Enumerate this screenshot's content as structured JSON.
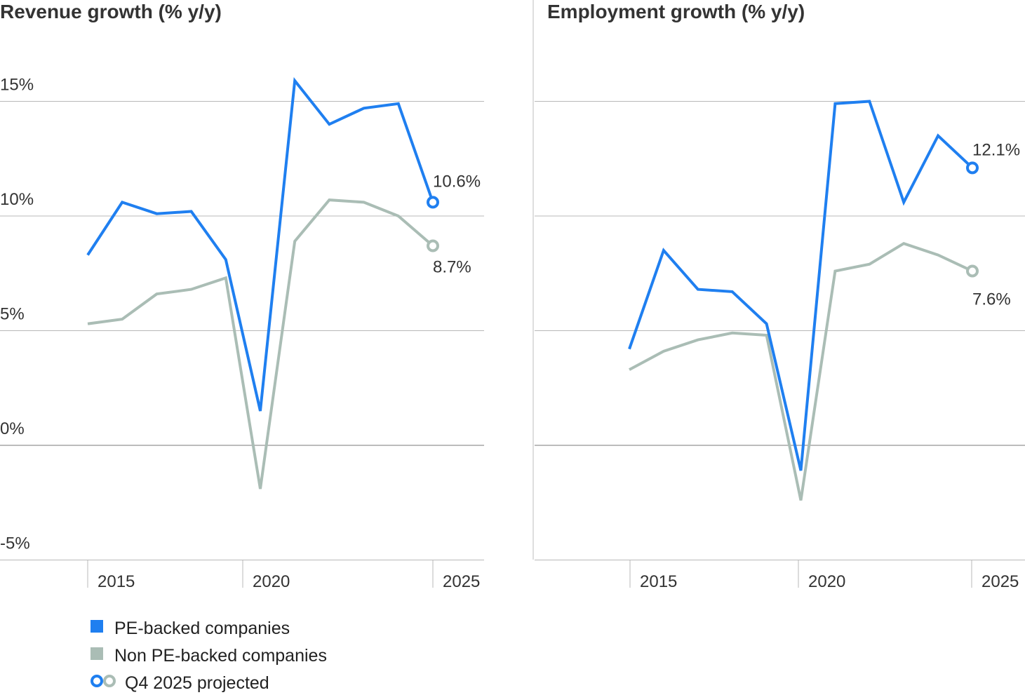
{
  "colors": {
    "pe": "#1f7ff0",
    "non_pe": "#aabdb5",
    "grid": "#b8b8b8",
    "zero": "#7a7a7a",
    "divider": "#bdbdbd"
  },
  "chart_data": [
    {
      "type": "line",
      "title": "Revenue growth (% y/y)",
      "x": [
        2014,
        2015,
        2016,
        2017,
        2018,
        2019,
        2020,
        2021,
        2022,
        2023,
        2024
      ],
      "ylim": [
        -5,
        15
      ],
      "yticks": [
        15,
        10,
        5,
        0,
        -5
      ],
      "ytick_labels": [
        "15%",
        "10%",
        "5%",
        "0%",
        "-5%"
      ],
      "xticks": [
        2015,
        2020,
        2025
      ],
      "xtick_labels": [
        "2015",
        "2020",
        "2025"
      ],
      "grid": true,
      "series": [
        {
          "name": "PE-backed companies",
          "color": "#1f7ff0",
          "values": [
            8.3,
            10.6,
            10.1,
            10.2,
            8.1,
            1.5,
            15.9,
            14.0,
            14.7,
            14.9,
            10.6
          ],
          "end_label": "10.6%"
        },
        {
          "name": "Non PE-backed companies",
          "color": "#aabdb5",
          "values": [
            5.3,
            5.5,
            6.6,
            6.8,
            7.3,
            -1.9,
            8.9,
            10.7,
            10.6,
            10.0,
            8.7
          ],
          "end_label": "8.7%"
        }
      ]
    },
    {
      "type": "line",
      "title": "Employment growth (% y/y)",
      "x": [
        2014,
        2015,
        2016,
        2017,
        2018,
        2019,
        2020,
        2021,
        2022,
        2023,
        2024
      ],
      "ylim": [
        -5,
        15
      ],
      "xticks": [
        2015,
        2020,
        2025
      ],
      "xtick_labels": [
        "2015",
        "2020",
        "2025"
      ],
      "grid": true,
      "series": [
        {
          "name": "PE-backed companies",
          "color": "#1f7ff0",
          "values": [
            4.2,
            8.5,
            6.8,
            6.7,
            5.3,
            -1.1,
            14.9,
            15.0,
            10.6,
            13.5,
            12.1
          ],
          "end_label": "12.1%"
        },
        {
          "name": "Non PE-backed companies",
          "color": "#aabdb5",
          "values": [
            3.3,
            4.1,
            4.6,
            4.9,
            4.8,
            -2.4,
            7.6,
            7.9,
            8.8,
            8.3,
            7.6
          ],
          "end_label": "7.6%"
        }
      ]
    }
  ],
  "legend": {
    "items": [
      {
        "label": "PE-backed companies",
        "marker": "square",
        "colors": [
          "#1f7ff0"
        ]
      },
      {
        "label": "Non PE-backed companies",
        "marker": "square",
        "colors": [
          "#aabdb5"
        ]
      },
      {
        "label": "Q4 2025 projected",
        "marker": "hollow-circles",
        "colors": [
          "#1f7ff0",
          "#aabdb5"
        ]
      }
    ]
  }
}
